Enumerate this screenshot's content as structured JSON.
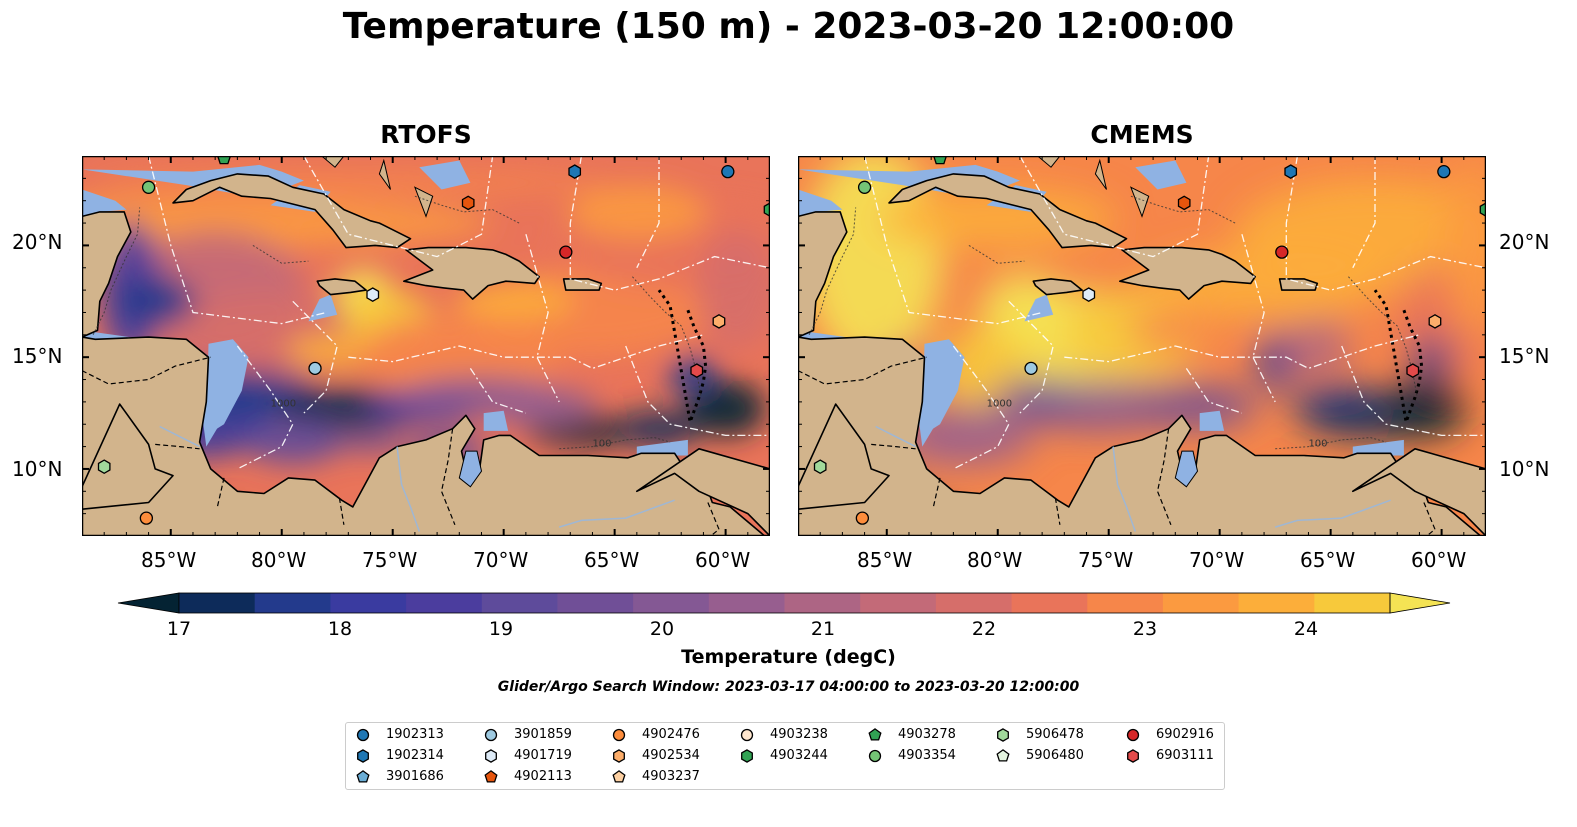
{
  "title": "Temperature (150 m) - 2023-03-20 12:00:00",
  "panels": [
    {
      "title": "RTOFS",
      "variant": "rtofs"
    },
    {
      "title": "CMEMS",
      "variant": "cmems"
    }
  ],
  "axes": {
    "x_ticks": [
      "85°W",
      "80°W",
      "75°W",
      "70°W",
      "65°W",
      "60°W"
    ],
    "y_ticks": [
      "20°N",
      "15°N",
      "10°N"
    ],
    "lon_range": [
      -89,
      -58
    ],
    "lat_range": [
      7,
      24
    ]
  },
  "contour_labels": [
    "1000",
    "100"
  ],
  "colorbar": {
    "label": "Temperature (degC)",
    "ticks": [
      "17",
      "18",
      "19",
      "20",
      "21",
      "22",
      "23",
      "24"
    ],
    "range": [
      17,
      24.5
    ],
    "colors": [
      "#042333",
      "#0d2b5a",
      "#233a8c",
      "#3a3ba0",
      "#4b3d9e",
      "#5e4b9b",
      "#704f97",
      "#845894",
      "#975e8f",
      "#ad6584",
      "#c36a78",
      "#d66e6a",
      "#e9745a",
      "#f6864a",
      "#fb9a40",
      "#fcae3a",
      "#f7c93b",
      "#f4e354"
    ],
    "extend": "both"
  },
  "search_window": "Glider/Argo Search Window: 2023-03-17 04:00:00 to 2023-03-20 12:00:00",
  "land_color": "#d2b48c",
  "shelf_color": "#8fb2e3",
  "legend": {
    "items": [
      {
        "id": "1902313",
        "marker": "circle",
        "color": "#1f77b4"
      },
      {
        "id": "1902314",
        "marker": "hexagon",
        "color": "#1f77b4"
      },
      {
        "id": "3901686",
        "marker": "pentagon",
        "color": "#6baed6"
      },
      {
        "id": "3901859",
        "marker": "circle",
        "color": "#9ecae1"
      },
      {
        "id": "4901719",
        "marker": "hexagon",
        "color": "#deebf7"
      },
      {
        "id": "4902113",
        "marker": "pentagon",
        "color": "#e6550d"
      },
      {
        "id": "4902476",
        "marker": "circle",
        "color": "#fd8d3c"
      },
      {
        "id": "4902534",
        "marker": "hexagon",
        "color": "#fdae6b"
      },
      {
        "id": "4903237",
        "marker": "pentagon",
        "color": "#fdd0a2"
      },
      {
        "id": "4903238",
        "marker": "circle",
        "color": "#fee6ce"
      },
      {
        "id": "4903244",
        "marker": "hexagon",
        "color": "#31a354"
      },
      {
        "id": "4903278",
        "marker": "pentagon",
        "color": "#31a354"
      },
      {
        "id": "4903354",
        "marker": "circle",
        "color": "#74c476"
      },
      {
        "id": "5906478",
        "marker": "hexagon",
        "color": "#a1d99b"
      },
      {
        "id": "5906480",
        "marker": "pentagon",
        "color": "#e5f5e0"
      },
      {
        "id": "6902916",
        "marker": "circle",
        "color": "#d62728"
      },
      {
        "id": "6903111",
        "marker": "hexagon",
        "color": "#e34a4a"
      }
    ]
  },
  "floats": [
    {
      "marker": "circle",
      "color": "#74c476",
      "lon": -86.0,
      "lat": 22.6
    },
    {
      "marker": "pentagon",
      "color": "#31a354",
      "lon": -82.6,
      "lat": 23.9
    },
    {
      "marker": "hexagon",
      "color": "#1f77b4",
      "lon": -66.8,
      "lat": 23.3
    },
    {
      "marker": "circle",
      "color": "#1f77b4",
      "lon": -59.9,
      "lat": 23.3
    },
    {
      "marker": "hexagon",
      "color": "#e6550d",
      "lon": -71.6,
      "lat": 21.9
    },
    {
      "marker": "circle",
      "color": "#d62728",
      "lon": -67.2,
      "lat": 19.7
    },
    {
      "marker": "hexagon",
      "color": "#deebf7",
      "lon": -75.9,
      "lat": 17.8
    },
    {
      "marker": "circle",
      "color": "#9ecae1",
      "lon": -78.5,
      "lat": 14.5
    },
    {
      "marker": "hexagon",
      "color": "#fdae6b",
      "lon": -60.3,
      "lat": 16.6
    },
    {
      "marker": "hexagon",
      "color": "#e34a4a",
      "lon": -61.3,
      "lat": 14.4
    },
    {
      "marker": "hexagon",
      "color": "#a1d99b",
      "lon": -88.0,
      "lat": 10.1
    },
    {
      "marker": "circle",
      "color": "#fd8d3c",
      "lon": -86.1,
      "lat": 7.8
    },
    {
      "marker": "hexagon",
      "color": "#31a354",
      "lon": -58.0,
      "lat": 21.6
    }
  ]
}
